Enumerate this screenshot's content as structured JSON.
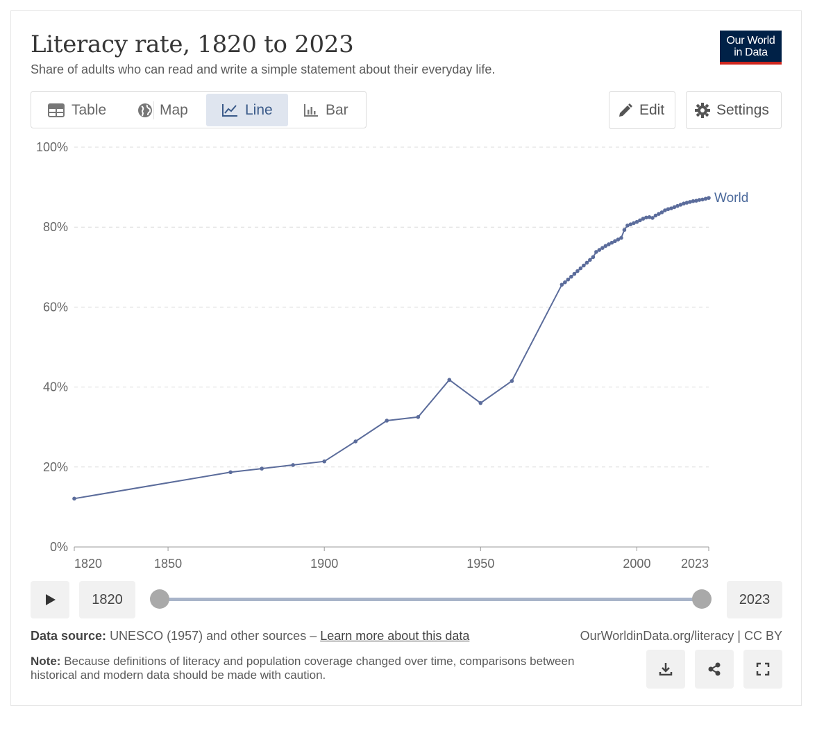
{
  "header": {
    "title": "Literacy rate, 1820 to 2023",
    "subtitle": "Share of adults who can read and write a simple statement about their everyday life.",
    "logo_line1": "Our World",
    "logo_line2": "in Data"
  },
  "tabs": [
    {
      "label": "Table",
      "icon": "table-icon"
    },
    {
      "label": "Map",
      "icon": "globe-icon"
    },
    {
      "label": "Line",
      "icon": "line-chart-icon",
      "active": true
    },
    {
      "label": "Bar",
      "icon": "bar-chart-icon"
    }
  ],
  "buttons": {
    "edit": "Edit",
    "settings": "Settings"
  },
  "colors": {
    "series": "#5b6c9b",
    "accent_tab": "#dfe5ef",
    "logo_bg": "#002147",
    "logo_bar": "#ce261e"
  },
  "chart_data": {
    "type": "line",
    "title": "Literacy rate, 1820 to 2023",
    "xlim": [
      1820,
      2023
    ],
    "ylim": [
      0,
      100
    ],
    "x_ticks": [
      1820,
      1850,
      1900,
      1950,
      2000,
      2023
    ],
    "y_ticks": [
      0,
      20,
      40,
      60,
      80,
      100
    ],
    "y_tick_labels": [
      "0%",
      "20%",
      "40%",
      "60%",
      "80%",
      "100%"
    ],
    "grid": "horizontal dashed",
    "series": [
      {
        "name": "World",
        "x": [
          1820,
          1870,
          1880,
          1890,
          1900,
          1910,
          1920,
          1930,
          1940,
          1950,
          1960,
          1976,
          1977,
          1978,
          1979,
          1980,
          1981,
          1982,
          1983,
          1984,
          1985,
          1986,
          1987,
          1988,
          1989,
          1990,
          1991,
          1992,
          1993,
          1994,
          1995,
          1996,
          1997,
          1998,
          1999,
          2000,
          2001,
          2002,
          2003,
          2004,
          2005,
          2006,
          2007,
          2008,
          2009,
          2010,
          2011,
          2012,
          2013,
          2014,
          2015,
          2016,
          2017,
          2018,
          2019,
          2020,
          2021,
          2022,
          2023
        ],
        "values": [
          12.1,
          18.7,
          19.6,
          20.5,
          21.4,
          26.4,
          31.6,
          32.5,
          41.8,
          36.0,
          41.5,
          65.6,
          66.2,
          66.9,
          67.6,
          68.3,
          69.0,
          69.7,
          70.4,
          71.1,
          71.8,
          72.5,
          73.8,
          74.3,
          74.8,
          75.3,
          75.7,
          76.1,
          76.5,
          76.9,
          77.3,
          79.3,
          80.4,
          80.7,
          81.0,
          81.3,
          81.7,
          82.1,
          82.4,
          82.5,
          82.3,
          82.9,
          83.3,
          83.7,
          84.2,
          84.5,
          84.7,
          85.0,
          85.3,
          85.6,
          85.9,
          86.1,
          86.3,
          86.5,
          86.6,
          86.8,
          86.9,
          87.1,
          87.3
        ]
      }
    ]
  },
  "timeline": {
    "start_year": "1820",
    "end_year": "2023"
  },
  "footer": {
    "source_label": "Data source:",
    "source_text": "UNESCO (1957) and other sources –",
    "learn_more": "Learn more about this data",
    "url_cc": "OurWorldinData.org/literacy | CC BY",
    "note_label": "Note:",
    "note_text": "Because definitions of literacy and population coverage changed over time, comparisons between historical and modern data should be made with caution."
  }
}
